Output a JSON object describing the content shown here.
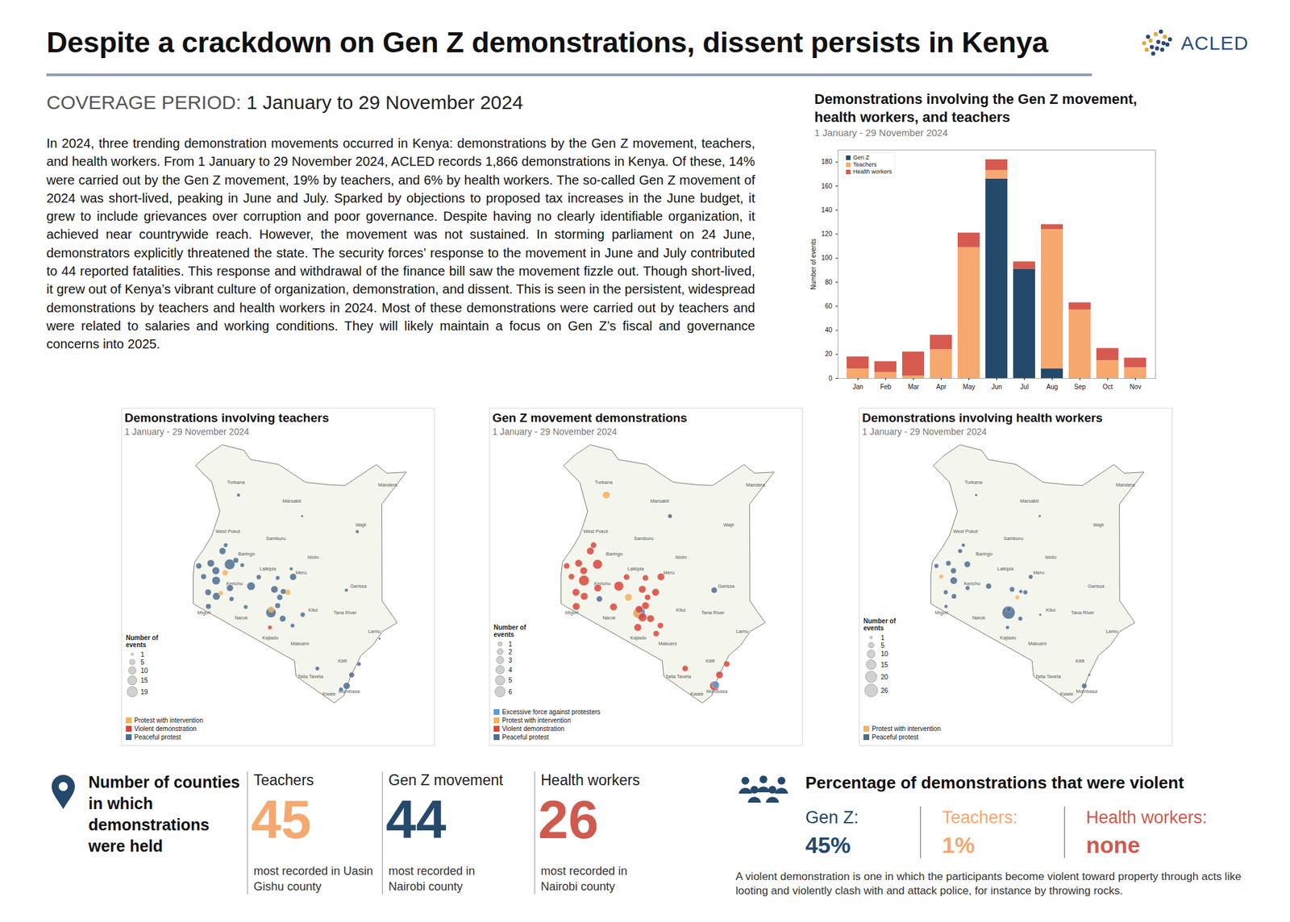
{
  "header": {
    "title": "Despite a crackdown on Gen Z demonstrations, dissent persists in Kenya",
    "logo": "ACLED",
    "coverage_label": "COVERAGE PERIOD:",
    "coverage_value": "1 January to 29 November 2024"
  },
  "intro": "In 2024, three trending demonstration movements occurred in Kenya: demonstrations by the Gen Z movement, teachers, and health workers. From 1 January to 29 November 2024, ACLED records 1,866 demonstrations in Kenya. Of these, 14% were carried out by the Gen Z movement, 19% by teachers, and 6% by health workers. The so-called Gen Z movement of 2024 was short-lived, peaking in June and July. Sparked by objections to proposed tax increases in the June budget, it grew to include grievances over corruption and poor governance. Despite having no clearly identifiable organization, it achieved near countrywide reach. However, the movement was not sustained. In storming parliament on 24 June, demonstrators explicitly threatened the state. The security forces’ response to the movement in June and July contributed to 44 reported fatalities. This response and withdrawal of the finance bill saw the movement fizzle out. Though short-lived, it grew out of Kenya’s vibrant culture of organization, demonstration, and dissent. This is seen in the persistent, widespread demonstrations by teachers and health workers in 2024. Most of these demonstrations were carried out by teachers and were related to salaries and working conditions. They will likely maintain a focus on Gen Z’s fiscal and governance concerns into 2025.",
  "chart_data": [
    {
      "type": "bar",
      "title": "Demonstrations involving the Gen Z movement, health workers, and teachers",
      "subtitle": "1 January - 29 November 2024",
      "categories": [
        "Jan",
        "Feb",
        "Mar",
        "Apr",
        "May",
        "Jun",
        "Jul",
        "Aug",
        "Sep",
        "Oct",
        "Nov"
      ],
      "series": [
        {
          "name": "Gen Z",
          "color": "#25496b",
          "values": [
            0,
            0,
            0,
            0,
            0,
            166,
            91,
            8,
            0,
            0,
            0
          ]
        },
        {
          "name": "Teachers",
          "color": "#f6a86f",
          "values": [
            8,
            5,
            2,
            24,
            109,
            7,
            0,
            116,
            57,
            15,
            9
          ]
        },
        {
          "name": "Health workers",
          "color": "#d65a50",
          "values": [
            10,
            9,
            20,
            12,
            12,
            9,
            6,
            4,
            6,
            10,
            8
          ]
        }
      ],
      "stacked": true,
      "ylim": [
        0,
        190
      ],
      "yticks": [
        0,
        20,
        40,
        60,
        80,
        100,
        120,
        140,
        160,
        180
      ],
      "y_label": "Number of events",
      "legend": "top-left",
      "grid": false
    },
    {
      "type": "map",
      "title": "Demonstrations involving teachers",
      "subtitle": "1 January - 29 November 2024",
      "size_title": "Number of events",
      "sizes": [
        1,
        5,
        10,
        15,
        19
      ],
      "types": [
        {
          "name": "Protest with intervention",
          "color": "#f5b15e"
        },
        {
          "name": "Violent demonstration",
          "color": "#d9453a"
        },
        {
          "name": "Peaceful protest",
          "color": "#4d6c8f"
        }
      ],
      "points": [
        [
          35.27,
          0.52,
          19,
          "Peaceful protest"
        ],
        [
          35.0,
          1.02,
          8,
          "Peaceful protest"
        ],
        [
          34.75,
          0.28,
          10,
          "Peaceful protest"
        ],
        [
          34.56,
          0.56,
          9,
          "Peaceful protest"
        ],
        [
          34.11,
          0.46,
          6,
          "Peaceful protest"
        ],
        [
          34.76,
          -0.09,
          12,
          "Peaceful protest"
        ],
        [
          34.29,
          0.06,
          5,
          "Peaceful protest"
        ],
        [
          34.46,
          -0.53,
          7,
          "Peaceful protest"
        ],
        [
          34.47,
          -1.06,
          5,
          "Peaceful protest"
        ],
        [
          34.77,
          -0.68,
          10,
          "Peaceful protest"
        ],
        [
          34.94,
          -0.56,
          4,
          "Protest with intervention"
        ],
        [
          35.28,
          -0.37,
          8,
          "Peaceful protest"
        ],
        [
          35.34,
          -0.78,
          4,
          "Peaceful protest"
        ],
        [
          35.1,
          0.2,
          6,
          "Protest with intervention"
        ],
        [
          35.5,
          0.67,
          5,
          "Peaceful protest"
        ],
        [
          35.74,
          0.49,
          3,
          "Peaceful protest"
        ],
        [
          36.07,
          -0.3,
          12,
          "Peaceful protest"
        ],
        [
          35.87,
          -1.08,
          3,
          "Peaceful protest"
        ],
        [
          36.36,
          0.04,
          4,
          "Peaceful protest"
        ],
        [
          36.95,
          -0.42,
          9,
          "Peaceful protest"
        ],
        [
          37.28,
          -0.5,
          5,
          "Peaceful protest"
        ],
        [
          37.45,
          -0.53,
          6,
          "Protest with intervention"
        ],
        [
          37.65,
          0.05,
          8,
          "Peaceful protest"
        ],
        [
          37.15,
          -0.72,
          6,
          "Peaceful protest"
        ],
        [
          37.07,
          -1.03,
          5,
          "Peaceful protest"
        ],
        [
          36.82,
          -1.29,
          18,
          "Peaceful protest"
        ],
        [
          36.83,
          -1.17,
          6,
          "Protest with intervention"
        ],
        [
          37.26,
          -1.52,
          7,
          "Peaceful protest"
        ],
        [
          38.01,
          -1.37,
          4,
          "Peaceful protest"
        ],
        [
          37.63,
          -1.78,
          3,
          "Peaceful protest"
        ],
        [
          36.78,
          -1.85,
          3,
          "Violent demonstration"
        ],
        [
          38.56,
          -3.39,
          3,
          "Peaceful protest"
        ],
        [
          39.66,
          -4.04,
          8,
          "Peaceful protest"
        ],
        [
          39.85,
          -3.63,
          5,
          "Peaceful protest"
        ],
        [
          40.12,
          -3.22,
          3,
          "Peaceful protest"
        ],
        [
          39.45,
          -4.17,
          3,
          "Peaceful protest"
        ],
        [
          39.65,
          -0.45,
          2,
          "Peaceful protest"
        ],
        [
          40.06,
          1.75,
          2,
          "Peaceful protest"
        ],
        [
          37.99,
          2.33,
          1,
          "Peaceful protest"
        ],
        [
          35.6,
          3.12,
          2,
          "Peaceful protest"
        ],
        [
          35.12,
          1.24,
          3,
          "Peaceful protest"
        ],
        [
          37.58,
          0.35,
          2,
          "Peaceful protest"
        ],
        [
          37.07,
          0.01,
          3,
          "Peaceful protest"
        ],
        [
          40.9,
          -2.27,
          1,
          "Peaceful protest"
        ]
      ]
    },
    {
      "type": "map",
      "title": "Gen Z movement demonstrations",
      "subtitle": "1 January - 29 November 2024",
      "size_title": "Number of events",
      "sizes": [
        1,
        2,
        3,
        4,
        5,
        6
      ],
      "types": [
        {
          "name": "Excessive force against protesters",
          "color": "#5b9bd5"
        },
        {
          "name": "Protest with intervention",
          "color": "#f5b15e"
        },
        {
          "name": "Violent demonstration",
          "color": "#d9453a"
        },
        {
          "name": "Peaceful protest",
          "color": "#4d6c8f"
        }
      ],
      "points": [
        [
          36.82,
          -1.29,
          6,
          "Violent demonstration"
        ],
        [
          36.88,
          -1.26,
          5,
          "Excessive force against protesters"
        ],
        [
          36.75,
          -1.32,
          4,
          "Protest with intervention"
        ],
        [
          36.85,
          -1.33,
          6,
          "Peaceful protest"
        ],
        [
          36.83,
          -1.17,
          3,
          "Violent demonstration"
        ],
        [
          37.07,
          -1.03,
          3,
          "Violent demonstration"
        ],
        [
          36.78,
          -1.85,
          3,
          "Violent demonstration"
        ],
        [
          36.96,
          -1.47,
          4,
          "Violent demonstration"
        ],
        [
          37.26,
          -1.52,
          3,
          "Violent demonstration"
        ],
        [
          37.63,
          -1.78,
          2,
          "Violent demonstration"
        ],
        [
          37.47,
          -2.08,
          2,
          "Violent demonstration"
        ],
        [
          36.07,
          -0.3,
          5,
          "Violent demonstration"
        ],
        [
          36.43,
          -0.72,
          3,
          "Protest with intervention"
        ],
        [
          36.36,
          0.04,
          2,
          "Violent demonstration"
        ],
        [
          36.95,
          -0.42,
          3,
          "Violent demonstration"
        ],
        [
          37.15,
          -0.72,
          2,
          "Violent demonstration"
        ],
        [
          37.45,
          -0.53,
          3,
          "Violent demonstration"
        ],
        [
          37.65,
          0.05,
          3,
          "Violent demonstration"
        ],
        [
          35.27,
          0.52,
          5,
          "Violent demonstration"
        ],
        [
          35.0,
          1.02,
          3,
          "Violent demonstration"
        ],
        [
          34.75,
          0.28,
          3,
          "Violent demonstration"
        ],
        [
          34.56,
          0.56,
          3,
          "Violent demonstration"
        ],
        [
          34.11,
          0.46,
          2,
          "Violent demonstration"
        ],
        [
          34.76,
          -0.09,
          6,
          "Violent demonstration"
        ],
        [
          34.29,
          0.06,
          2,
          "Violent demonstration"
        ],
        [
          34.46,
          -0.53,
          3,
          "Violent demonstration"
        ],
        [
          34.47,
          -1.06,
          3,
          "Violent demonstration"
        ],
        [
          34.77,
          -0.68,
          3,
          "Violent demonstration"
        ],
        [
          35.28,
          -0.37,
          3,
          "Violent demonstration"
        ],
        [
          35.34,
          -0.78,
          2,
          "Peaceful protest"
        ],
        [
          35.87,
          -1.08,
          3,
          "Violent demonstration"
        ],
        [
          35.6,
          3.12,
          3,
          "Protest with intervention"
        ],
        [
          37.99,
          2.33,
          1,
          "Peaceful protest"
        ],
        [
          38.56,
          -3.39,
          2,
          "Violent demonstration"
        ],
        [
          39.66,
          -4.04,
          5,
          "Violent demonstration"
        ],
        [
          39.7,
          -4.0,
          3,
          "Excessive force against protesters"
        ],
        [
          39.85,
          -3.63,
          3,
          "Violent demonstration"
        ],
        [
          40.12,
          -3.22,
          2,
          "Violent demonstration"
        ],
        [
          39.65,
          -0.45,
          2,
          "Peaceful protest"
        ],
        [
          37.07,
          0.01,
          2,
          "Violent demonstration"
        ],
        [
          35.12,
          1.24,
          2,
          "Violent demonstration"
        ]
      ]
    },
    {
      "type": "map",
      "title": "Demonstrations involving health workers",
      "subtitle": "1 January - 29 November 2024",
      "size_title": "Number of events",
      "sizes": [
        1,
        5,
        10,
        15,
        20,
        26
      ],
      "types": [
        {
          "name": "Protest with intervention",
          "color": "#f5b15e"
        },
        {
          "name": "Peaceful protest",
          "color": "#4d6c8f"
        }
      ],
      "points": [
        [
          36.82,
          -1.29,
          26,
          "Peaceful protest"
        ],
        [
          36.83,
          -1.17,
          4,
          "Peaceful protest"
        ],
        [
          35.27,
          0.52,
          6,
          "Peaceful protest"
        ],
        [
          35.0,
          1.02,
          3,
          "Peaceful protest"
        ],
        [
          34.75,
          0.28,
          5,
          "Peaceful protest"
        ],
        [
          34.56,
          0.56,
          4,
          "Peaceful protest"
        ],
        [
          34.11,
          0.46,
          3,
          "Peaceful protest"
        ],
        [
          34.76,
          -0.09,
          8,
          "Peaceful protest"
        ],
        [
          34.29,
          0.06,
          3,
          "Protest with intervention"
        ],
        [
          34.46,
          -0.53,
          3,
          "Peaceful protest"
        ],
        [
          34.47,
          -1.06,
          2,
          "Peaceful protest"
        ],
        [
          34.77,
          -0.68,
          4,
          "Peaceful protest"
        ],
        [
          35.28,
          -0.37,
          3,
          "Peaceful protest"
        ],
        [
          36.07,
          -0.3,
          5,
          "Peaceful protest"
        ],
        [
          36.95,
          -0.42,
          4,
          "Peaceful protest"
        ],
        [
          37.28,
          -0.5,
          2,
          "Peaceful protest"
        ],
        [
          37.45,
          -0.53,
          3,
          "Peaceful protest"
        ],
        [
          37.65,
          0.05,
          3,
          "Peaceful protest"
        ],
        [
          37.15,
          -0.72,
          3,
          "Protest with intervention"
        ],
        [
          37.26,
          -1.52,
          3,
          "Peaceful protest"
        ],
        [
          36.78,
          -1.85,
          2,
          "Peaceful protest"
        ],
        [
          39.66,
          -4.04,
          4,
          "Peaceful protest"
        ],
        [
          39.85,
          -3.63,
          1,
          "Peaceful protest"
        ],
        [
          35.12,
          1.24,
          2,
          "Peaceful protest"
        ],
        [
          35.6,
          3.12,
          1,
          "Peaceful protest"
        ],
        [
          37.99,
          2.33,
          1,
          "Peaceful protest"
        ],
        [
          38.01,
          -1.37,
          1,
          "Peaceful protest"
        ]
      ]
    }
  ],
  "map_county_labels": [
    [
      "Turkana",
      35.5,
      3.6
    ],
    [
      "Marsabit",
      37.6,
      2.9
    ],
    [
      "Mandera",
      41.2,
      3.5
    ],
    [
      "Wajir",
      40.2,
      2.0
    ],
    [
      "West Pokot",
      35.2,
      1.75
    ],
    [
      "Samburu",
      37.0,
      1.5
    ],
    [
      "Isiolo",
      38.4,
      0.8
    ],
    [
      "Baringo",
      35.9,
      0.9
    ],
    [
      "Laikipia",
      36.7,
      0.35
    ],
    [
      "Meru",
      37.95,
      0.2
    ],
    [
      "Garissa",
      40.1,
      -0.3
    ],
    [
      "Narok",
      35.7,
      -1.5
    ],
    [
      "Kajiado",
      36.8,
      -2.25
    ],
    [
      "Kitui",
      38.4,
      -1.2
    ],
    [
      "Tana River",
      39.6,
      -1.3
    ],
    [
      "Lamu",
      40.7,
      -2.0
    ],
    [
      "Makueni",
      37.9,
      -2.45
    ],
    [
      "Taita Taveta",
      38.3,
      -3.7
    ],
    [
      "Kilifi",
      39.5,
      -3.1
    ],
    [
      "Kwale",
      39.0,
      -4.35
    ],
    [
      "Mombasa",
      39.75,
      -4.25
    ],
    [
      "Migori",
      34.3,
      -1.3
    ],
    [
      "Kericho",
      35.45,
      -0.2
    ]
  ],
  "stats": {
    "counties": {
      "title": "Number of counties in which demonstrations were held",
      "items": [
        {
          "name": "Teachers",
          "value": 45,
          "color": "#f6a86f",
          "note": "most recorded in Uasin Gishu county"
        },
        {
          "name": "Gen Z movement",
          "value": 44,
          "color": "#25496b",
          "note": "most recorded in Nairobi county"
        },
        {
          "name": "Health workers",
          "value": 26,
          "color": "#cf5a4e",
          "note": "most recorded in Nairobi county"
        }
      ]
    },
    "violence": {
      "title": "Percentage of demonstrations that were violent",
      "items": [
        {
          "name": "Gen Z:",
          "label": "45%",
          "color": "#25496b"
        },
        {
          "name": "Teachers:",
          "label": "1%",
          "color": "#f6a86f"
        },
        {
          "name": "Health workers:",
          "label": "none",
          "color": "#cf5a4e"
        }
      ],
      "note": "A violent demonstration is one in which the participants become violent toward property through acts like looting and violently clash with and attack police, for instance by throwing rocks."
    }
  }
}
